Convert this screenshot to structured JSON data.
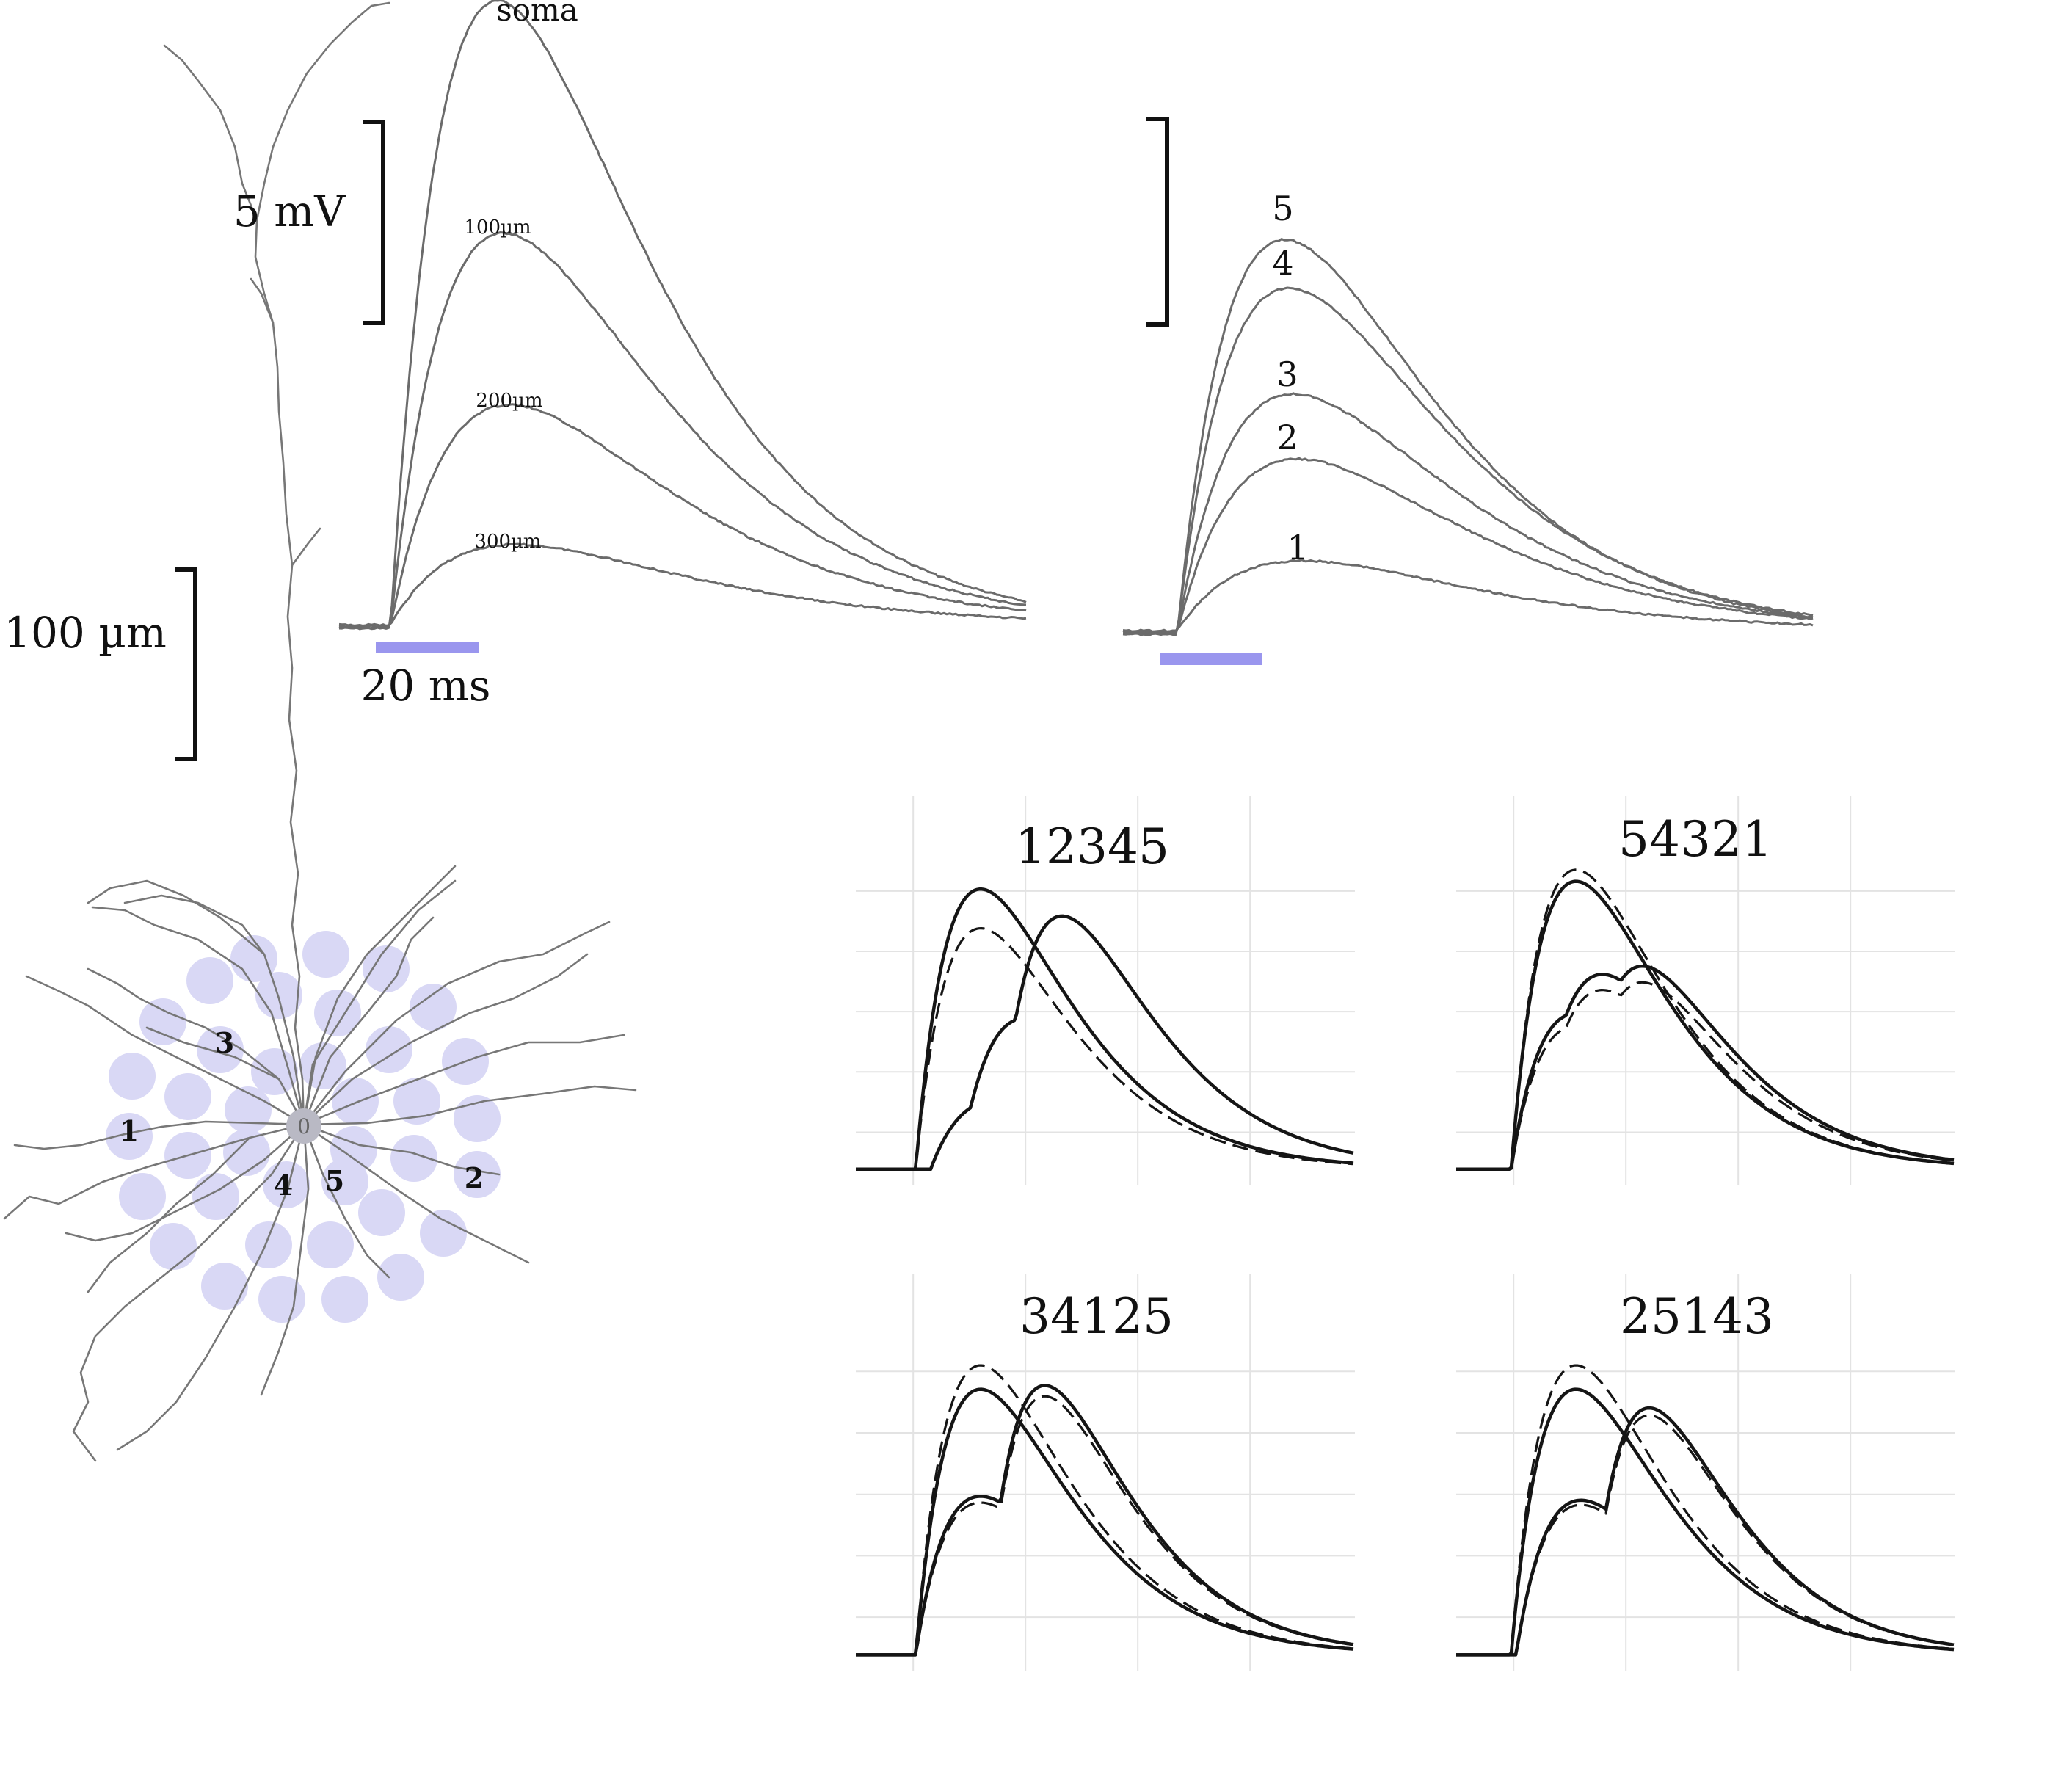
{
  "scale_bars": {
    "length": "100 µm",
    "voltage": "5 mV",
    "time": "20 ms"
  },
  "colors": {
    "stimulus": "#9a96ee",
    "sites": "#d9d8f5",
    "soma": "#b9b9c4",
    "trace": "#6b6b6b",
    "ink": "#151515"
  },
  "neuron": {
    "soma_label": "0",
    "site_labels": [
      "1",
      "2",
      "3",
      "4",
      "5"
    ]
  },
  "panel_a": {
    "labels": [
      "soma",
      "100µm",
      "200µm",
      "300µm"
    ],
    "peaks_mV": [
      15.6,
      9.8,
      5.5,
      2.0
    ]
  },
  "panel_b": {
    "labels": [
      "5",
      "4",
      "3",
      "2",
      "1"
    ],
    "peaks_mV": [
      9.6,
      8.4,
      5.8,
      4.2,
      1.7
    ]
  },
  "sequence_panels": [
    {
      "title": "12345"
    },
    {
      "title": "54321"
    },
    {
      "title": "34125"
    },
    {
      "title": "25143"
    }
  ],
  "chart_data": {
    "type": "line",
    "panels": [
      {
        "title": "12345",
        "series": [
          {
            "values": []
          }
        ]
      },
      {
        "title": "54321",
        "series": [
          {
            "values": []
          }
        ]
      },
      {
        "title": "34125",
        "series": [
          {
            "values": []
          }
        ]
      },
      {
        "title": "25143",
        "series": [
          {
            "values": []
          }
        ]
      }
    ]
  }
}
